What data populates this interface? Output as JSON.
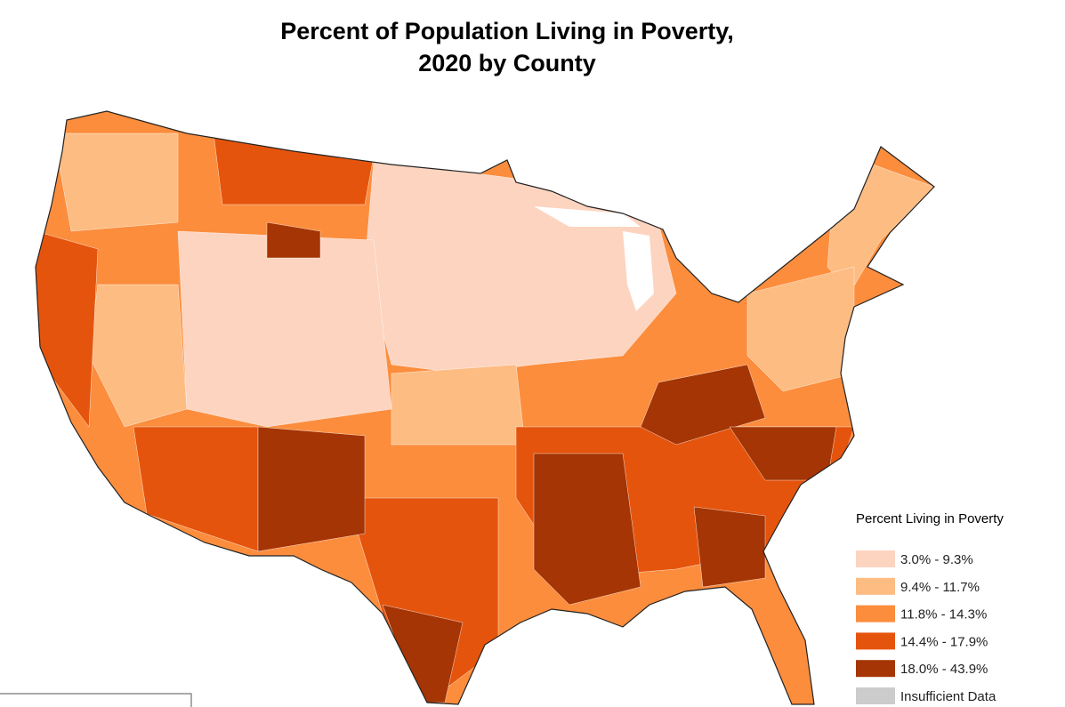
{
  "title": {
    "line1": "Percent of Population Living in Poverty,",
    "line2": "2020 by County"
  },
  "legend": {
    "title": "Percent Living in Poverty",
    "items": [
      {
        "label": "3.0% - 9.3%",
        "color": "#fdd4c0"
      },
      {
        "label": "9.4% - 11.7%",
        "color": "#fdbc82"
      },
      {
        "label": "11.8% - 14.3%",
        "color": "#fc8d3d"
      },
      {
        "label": "14.4% - 17.9%",
        "color": "#e5540d"
      },
      {
        "label": "18.0% - 43.9%",
        "color": "#a53504"
      },
      {
        "label": "Insufficient Data",
        "color": "#cccccc"
      }
    ]
  }
}
